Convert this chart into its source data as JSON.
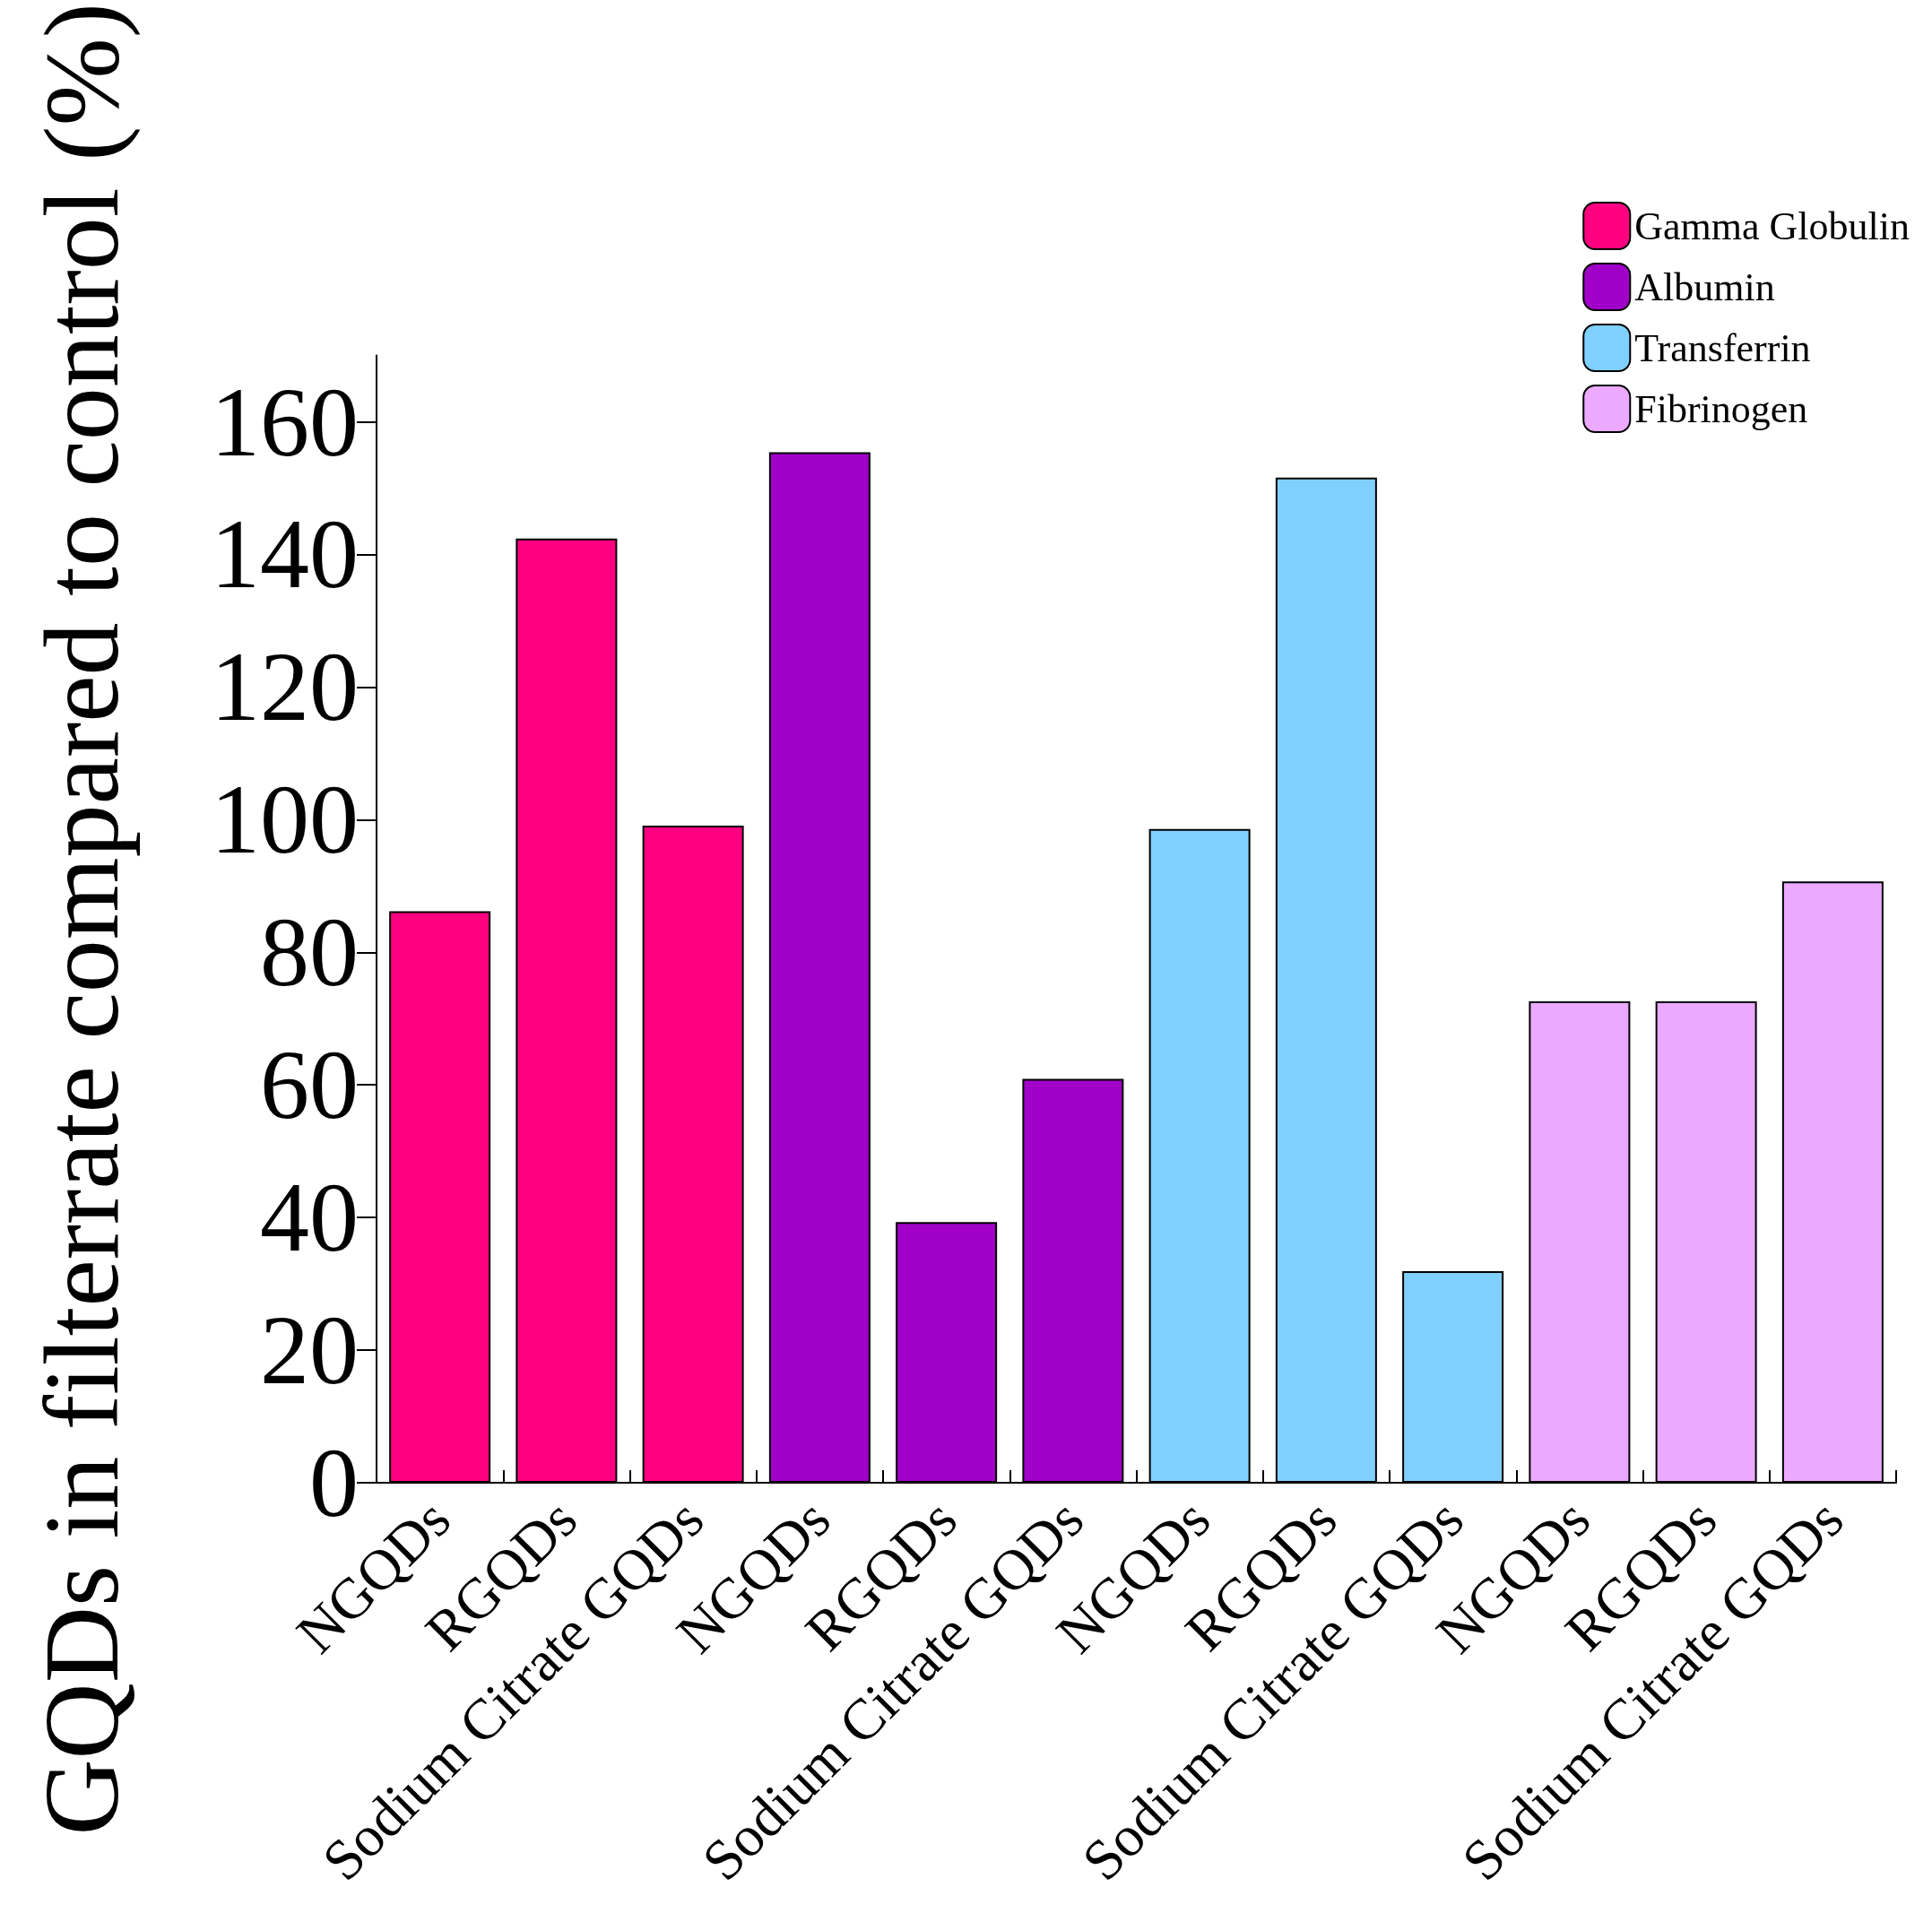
{
  "chart_data": {
    "type": "bar",
    "ylabel": "GQDs in filterrate compared to control (%)",
    "categories": [
      "NGQDs",
      "RGQDs",
      "Sodium Citrate GQDs",
      "NGQDs",
      "RGQDs",
      "Sodium Citrate GQDs",
      "NGQDs",
      "RGQDs",
      "Sodium Citrate GQDs",
      "NGQDs",
      "RGQDs",
      "Sodium Citrate GQDs"
    ],
    "series": [
      {
        "name": "Gamma Globulin",
        "color": "#ff0080",
        "values": [
          86.2,
          142.4,
          99.1,
          null,
          null,
          null,
          null,
          null,
          null,
          null,
          null,
          null
        ]
      },
      {
        "name": "Albumin",
        "color": "#a000c8",
        "values": [
          null,
          null,
          null,
          155.4,
          39.3,
          60.9,
          null,
          null,
          null,
          null,
          null,
          null
        ]
      },
      {
        "name": "Transferrin",
        "color": "#80d0ff",
        "values": [
          null,
          null,
          null,
          null,
          null,
          null,
          98.6,
          151.6,
          31.9,
          null,
          null,
          null
        ]
      },
      {
        "name": "Fibrinogen",
        "color": "#ebaaff",
        "values": [
          null,
          null,
          null,
          null,
          null,
          null,
          null,
          null,
          null,
          72.6,
          72.6,
          90.7
        ]
      }
    ],
    "ylim": [
      0,
      170
    ],
    "yticks": [
      0,
      20,
      40,
      60,
      80,
      100,
      120,
      140,
      160
    ],
    "grid": false,
    "legend": "top right"
  }
}
